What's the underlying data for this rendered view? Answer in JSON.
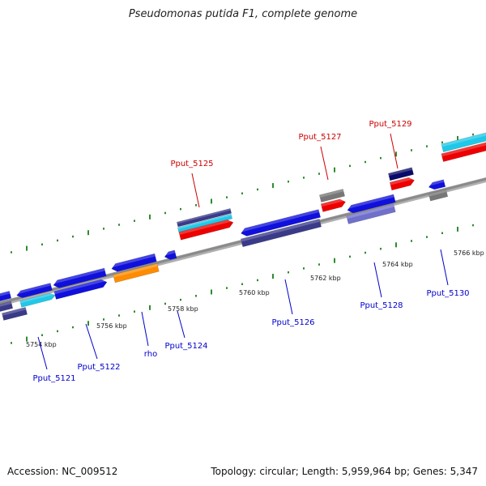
{
  "title": "Pseudomonas putida F1, complete genome",
  "footer": {
    "accession": "Accession: NC_009512",
    "summary": "Topology: circular; Length: 5,959,964 bp; Genes: 5,347"
  },
  "colors": {
    "backbone": "#8a8a8a",
    "tick": "#2e8b2e",
    "highlight_label": "#cc0000",
    "normal_label": "#0000cc",
    "blue": "#1010dd",
    "navy": "#3a3a8a",
    "cyan": "#20c8e8",
    "red": "#ee0000",
    "orange": "#ff8c00",
    "gray": "#777777",
    "lavender": "#7070cc",
    "darknavy": "#0a0a6a"
  },
  "kbp_labels": [
    "5754 kbp",
    "5756 kbp",
    "5758 kbp",
    "5760 kbp",
    "5762 kbp",
    "5764 kbp",
    "5766 kbp"
  ],
  "gene_labels": [
    {
      "name": "Pput_5121",
      "highlight": false
    },
    {
      "name": "Pput_5122",
      "highlight": false
    },
    {
      "name": "rho",
      "highlight": false
    },
    {
      "name": "Pput_5124",
      "highlight": false
    },
    {
      "name": "Pput_5125",
      "highlight": true
    },
    {
      "name": "Pput_5126",
      "highlight": false
    },
    {
      "name": "Pput_5127",
      "highlight": true
    },
    {
      "name": "Pput_5128",
      "highlight": false
    },
    {
      "name": "Pput_5129",
      "highlight": true
    },
    {
      "name": "Pput_5130",
      "highlight": false
    }
  ],
  "features": [
    {
      "name": "Pput_5121",
      "color": "blue"
    },
    {
      "name": "Pput_5121",
      "color": "cyan"
    },
    {
      "name": "Pput_5121",
      "color": "navy"
    },
    {
      "name": "Pput_5122",
      "color": "blue"
    },
    {
      "name": "Pput_5122",
      "color": "blue"
    },
    {
      "name": "rho",
      "color": "blue"
    },
    {
      "name": "rho",
      "color": "orange"
    },
    {
      "name": "Pput_5124",
      "color": "blue"
    },
    {
      "name": "Pput_5125",
      "color": "navy"
    },
    {
      "name": "Pput_5125",
      "color": "cyan"
    },
    {
      "name": "Pput_5125",
      "color": "red"
    },
    {
      "name": "Pput_5126",
      "color": "blue"
    },
    {
      "name": "Pput_5126",
      "color": "navy"
    },
    {
      "name": "Pput_5127",
      "color": "gray"
    },
    {
      "name": "Pput_5127",
      "color": "red"
    },
    {
      "name": "Pput_5128",
      "color": "blue"
    },
    {
      "name": "Pput_5128",
      "color": "lavender"
    },
    {
      "name": "Pput_5129",
      "color": "darknavy"
    },
    {
      "name": "Pput_5129",
      "color": "red"
    },
    {
      "name": "Pput_5130",
      "color": "blue"
    },
    {
      "name": "Pput_5130",
      "color": "gray"
    },
    {
      "name": "edge-right",
      "color": "cyan"
    },
    {
      "name": "edge-right",
      "color": "red"
    },
    {
      "name": "edge-left",
      "color": "blue"
    },
    {
      "name": "edge-left",
      "color": "navy"
    }
  ]
}
